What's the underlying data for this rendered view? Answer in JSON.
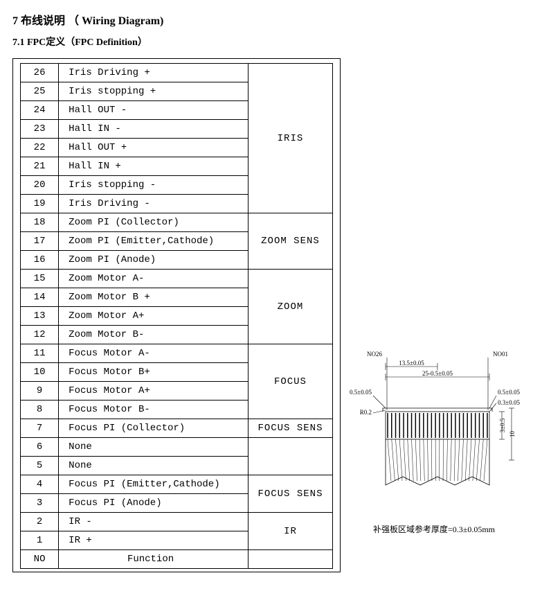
{
  "heading_main": "7 布线说明 （ Wiring Diagram)",
  "heading_sub": "7.1  FPC定义（FPC  Definition）",
  "table": {
    "header": {
      "pin": "NO",
      "func": "Function",
      "group": ""
    },
    "groups": [
      {
        "label": "IRIS",
        "rows": [
          {
            "pin": "26",
            "func": "Iris Driving +"
          },
          {
            "pin": "25",
            "func": "Iris stopping +"
          },
          {
            "pin": "24",
            "func": "Hall OUT -"
          },
          {
            "pin": "23",
            "func": "Hall IN -"
          },
          {
            "pin": "22",
            "func": "Hall OUT +"
          },
          {
            "pin": "21",
            "func": "Hall IN +"
          },
          {
            "pin": "20",
            "func": "Iris stopping -"
          },
          {
            "pin": "19",
            "func": "Iris Driving -"
          }
        ]
      },
      {
        "label": "ZOOM  SENS",
        "rows": [
          {
            "pin": "18",
            "func": "Zoom PI (Collector)"
          },
          {
            "pin": "17",
            "func": "Zoom PI (Emitter,Cathode)"
          },
          {
            "pin": "16",
            "func": "Zoom PI (Anode)"
          }
        ]
      },
      {
        "label": "ZOOM",
        "rows": [
          {
            "pin": "15",
            "func": "Zoom  Motor A-"
          },
          {
            "pin": "14",
            "func": "Zoom  Motor B +"
          },
          {
            "pin": "13",
            "func": "Zoom  Motor A+"
          },
          {
            "pin": "12",
            "func": "Zoom  Motor B-"
          }
        ]
      },
      {
        "label": "FOCUS",
        "rows": [
          {
            "pin": "11",
            "func": "Focus Motor A-"
          },
          {
            "pin": "10",
            "func": "Focus Motor B+"
          },
          {
            "pin": "9",
            "func": "Focus Motor A+"
          },
          {
            "pin": "8",
            "func": "Focus Motor B-"
          }
        ]
      },
      {
        "label": "FOCUS SENS",
        "rows": [
          {
            "pin": "7",
            "func": "Focus PI (Collector)"
          }
        ]
      },
      {
        "label": "",
        "rows": [
          {
            "pin": "6",
            "func": "None"
          },
          {
            "pin": "5",
            "func": "None"
          }
        ]
      },
      {
        "label": "FOCUS SENS",
        "rows": [
          {
            "pin": "4",
            "func": "Focus  PI (Emitter,Cathode)"
          },
          {
            "pin": "3",
            "func": "Focus  PI (Anode)"
          }
        ]
      },
      {
        "label": "IR",
        "rows": [
          {
            "pin": "2",
            "func": "IR  -"
          },
          {
            "pin": "1",
            "func": "IR  +"
          }
        ]
      }
    ]
  },
  "diagram": {
    "label_left": "NO26",
    "label_right": "NO01",
    "dim_top1": "13.5±0.05",
    "dim_top2": "25-0.5±0.05",
    "dim_left_gap": "0.5±0.05",
    "dim_right_gap1": "0.5±0.05",
    "dim_right_gap2": "0.3±0.05",
    "dim_radius": "R0.2",
    "dim_height_inner": "3±0.5",
    "dim_height_outer": "10",
    "pin_count": 26,
    "colors": {
      "stroke": "#000000",
      "fill_body": "#ffffff"
    },
    "caption": "补强板区域参考厚度=0.3±0.05mm"
  }
}
